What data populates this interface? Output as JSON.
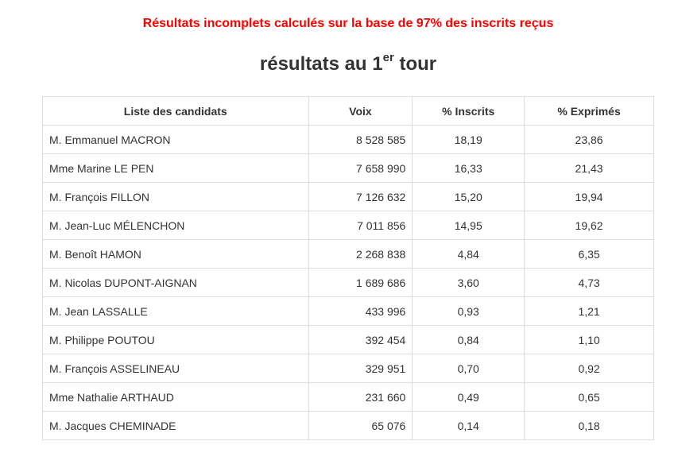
{
  "warning": "Résultats incomplets calculés sur la base de 97% des inscrits reçus",
  "title": {
    "main": "résultats au 1",
    "sup": "er",
    "rest": " tour"
  },
  "table": {
    "headers": [
      "Liste des candidats",
      "Voix",
      "% Inscrits",
      "% Exprimés"
    ],
    "rows": [
      [
        "M. Emmanuel MACRON",
        "8 528 585",
        "18,19",
        "23,86"
      ],
      [
        "Mme Marine LE PEN",
        "7 658 990",
        "16,33",
        "21,43"
      ],
      [
        "M. François FILLON",
        "7 126 632",
        "15,20",
        "19,94"
      ],
      [
        "M. Jean-Luc MÉLENCHON",
        "7 011 856",
        "14,95",
        "19,62"
      ],
      [
        "M. Benoît HAMON",
        "2 268 838",
        "4,84",
        "6,35"
      ],
      [
        "M. Nicolas DUPONT-AIGNAN",
        "1 689 686",
        "3,60",
        "4,73"
      ],
      [
        "M. Jean LASSALLE",
        "433 996",
        "0,93",
        "1,21"
      ],
      [
        "M. Philippe POUTOU",
        "392 454",
        "0,84",
        "1,10"
      ],
      [
        "M. François ASSELINEAU",
        "329 951",
        "0,70",
        "0,92"
      ],
      [
        "Mme Nathalie ARTHAUD",
        "231 660",
        "0,49",
        "0,65"
      ],
      [
        "M. Jacques CHEMINADE",
        "65 076",
        "0,14",
        "0,18"
      ]
    ]
  },
  "colors": {
    "warning": "#ff0000",
    "text": "#333333",
    "border": "#dddddd"
  }
}
